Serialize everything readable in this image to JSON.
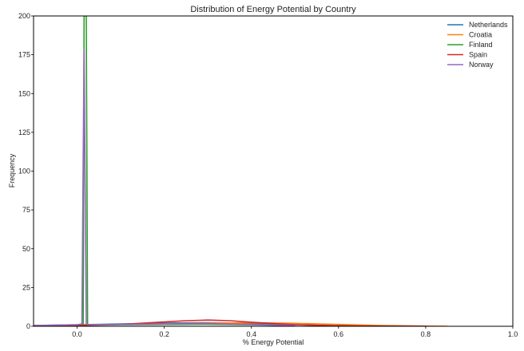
{
  "chart_data": {
    "type": "line",
    "title": "Distribution of Energy Potential by Country",
    "xlabel": "% Energy Potential",
    "ylabel": "Frequency",
    "xlim": [
      -0.1,
      1.0
    ],
    "ylim": [
      0,
      200
    ],
    "xticks": [
      0.0,
      0.2,
      0.4,
      0.6,
      0.8,
      1.0
    ],
    "xtick_labels": [
      "0.0",
      "0.2",
      "0.4",
      "0.6",
      "0.8",
      "1.0"
    ],
    "yticks": [
      0,
      25,
      50,
      75,
      100,
      125,
      150,
      175,
      200
    ],
    "ytick_labels": [
      "0",
      "25",
      "50",
      "75",
      "100",
      "125",
      "150",
      "175",
      "200"
    ],
    "grid": false,
    "legend_position": "top-right",
    "series": [
      {
        "name": "Netherlands",
        "color": "#1f77b4",
        "x": [
          -0.1,
          0.0,
          0.1,
          0.2,
          0.25,
          0.3,
          0.35,
          0.4,
          0.5,
          0.6,
          0.7,
          0.8
        ],
        "y": [
          0.5,
          1.0,
          1.5,
          2.0,
          2.2,
          2.3,
          2.1,
          1.8,
          1.0,
          0.4,
          0.1,
          0.0
        ]
      },
      {
        "name": "Croatia",
        "color": "#ff7f0e",
        "x": [
          -0.1,
          0.0,
          0.1,
          0.2,
          0.3,
          0.4,
          0.45,
          0.5,
          0.6,
          0.7,
          0.8,
          0.85
        ],
        "y": [
          0.5,
          0.8,
          1.2,
          1.6,
          2.0,
          2.2,
          2.1,
          1.9,
          1.2,
          0.5,
          0.1,
          0.0
        ]
      },
      {
        "name": "Finland",
        "color": "#2ca02c",
        "x": [
          -0.1,
          0.0,
          0.014,
          0.016,
          0.019,
          0.021,
          0.024,
          0.03,
          0.1,
          0.2,
          0.3,
          0.4,
          0.5
        ],
        "y": [
          0.3,
          0.5,
          1.0,
          200,
          200,
          200,
          1.0,
          0.8,
          1.0,
          1.2,
          1.3,
          1.0,
          0.5
        ]
      },
      {
        "name": "Spain",
        "color": "#d62728",
        "x": [
          -0.1,
          0.0,
          0.1,
          0.2,
          0.25,
          0.3,
          0.35,
          0.4,
          0.5,
          0.6,
          0.7,
          0.8
        ],
        "y": [
          0.3,
          0.5,
          1.2,
          2.8,
          3.6,
          4.0,
          3.6,
          2.6,
          1.0,
          0.3,
          0.1,
          0.0
        ]
      },
      {
        "name": "Norway",
        "color": "#9467bd",
        "x": [
          -0.1,
          0.0,
          0.011,
          0.014,
          0.016,
          0.018,
          0.021,
          0.025,
          0.1,
          0.2,
          0.3,
          0.4,
          0.5
        ],
        "y": [
          0.5,
          1.0,
          1.5,
          110,
          178,
          110,
          1.5,
          1.0,
          1.2,
          1.5,
          1.7,
          1.2,
          0.5
        ]
      }
    ]
  }
}
